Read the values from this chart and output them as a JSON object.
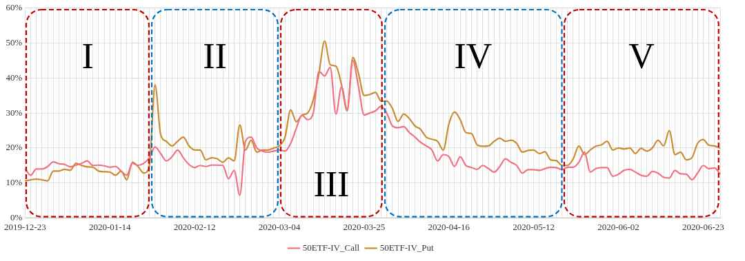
{
  "chart_data": {
    "type": "line",
    "categories": [
      "2019-12-23",
      null,
      null,
      null,
      null,
      null,
      null,
      null,
      null,
      null,
      null,
      null,
      null,
      null,
      null,
      "2020-01-14",
      null,
      null,
      null,
      null,
      null,
      null,
      null,
      null,
      null,
      null,
      null,
      null,
      null,
      null,
      "2020-02-12",
      null,
      null,
      null,
      null,
      null,
      null,
      null,
      null,
      null,
      null,
      null,
      null,
      null,
      null,
      "2020-03-04",
      null,
      null,
      null,
      null,
      null,
      null,
      null,
      null,
      null,
      null,
      null,
      null,
      null,
      null,
      "2020-03-25",
      null,
      null,
      null,
      null,
      null,
      null,
      null,
      null,
      null,
      null,
      null,
      null,
      null,
      null,
      "2020-04-16",
      null,
      null,
      null,
      null,
      null,
      null,
      null,
      null,
      null,
      null,
      null,
      null,
      null,
      null,
      "2020-05-12",
      null,
      null,
      null,
      null,
      null,
      null,
      null,
      null,
      null,
      null,
      null,
      null,
      null,
      null,
      "2020-06-02",
      null,
      null,
      null,
      null,
      null,
      null,
      null,
      null,
      null,
      null,
      null,
      null,
      null,
      null,
      "2020-06-23",
      null,
      null,
      null
    ],
    "series": [
      {
        "name": "50ETF-IV_Call",
        "color": "#f27083",
        "values": [
          14.1,
          12.2,
          14,
          14,
          14.7,
          16,
          15.5,
          15.3,
          14.6,
          15.1,
          15.6,
          16.3,
          15,
          15.1,
          14.9,
          14.5,
          14.7,
          13.4,
          12.2,
          15.6,
          15,
          15.6,
          17.2,
          20.3,
          18.4,
          16.3,
          17.5,
          19.4,
          17.2,
          15.3,
          14.4,
          15,
          14.7,
          15.1,
          15.1,
          15,
          11.2,
          13.6,
          6.5,
          21.9,
          23.1,
          20,
          19.1,
          18.8,
          19.1,
          19.4,
          19.1,
          21.3,
          25.6,
          29.4,
          28.1,
          30,
          41.9,
          40.6,
          43.1,
          29.7,
          37.5,
          30.9,
          45,
          37.5,
          29.4,
          30,
          30.6,
          31.9,
          30,
          26.3,
          25.8,
          26.1,
          24.4,
          23.1,
          21.6,
          20.6,
          19.4,
          16.3,
          18.1,
          17.5,
          14.7,
          17.5,
          15,
          14.4,
          13.9,
          15,
          14.1,
          13.1,
          14.7,
          16.9,
          15.9,
          15,
          12.8,
          13.8,
          13.8,
          13.6,
          14.1,
          14.5,
          14.4,
          13.8,
          14.5,
          14.5,
          15.9,
          18.8,
          13.1,
          14.1,
          14.4,
          14.4,
          11.9,
          12.5,
          13.6,
          13.9,
          13.1,
          12.2,
          11.9,
          13.3,
          12.8,
          11.6,
          11.4,
          13.6,
          12.6,
          12.5,
          10.9,
          12.8,
          15,
          14.1,
          14.3,
          12.5
        ]
      },
      {
        "name": "50ETF-IV_Put",
        "color": "#c98c2e",
        "values": [
          10.6,
          10.9,
          11.1,
          10.9,
          10.6,
          13.4,
          13.4,
          13.9,
          13.6,
          15.6,
          15,
          14.6,
          14.5,
          13.4,
          13.2,
          13.1,
          12.2,
          13.4,
          10.9,
          15.9,
          14.7,
          12.8,
          15,
          38.1,
          23.8,
          21.9,
          20.6,
          21.9,
          23.1,
          20.6,
          19.4,
          19.4,
          16.6,
          17.2,
          16.9,
          15.9,
          17.2,
          16.3,
          26.6,
          19.4,
          22.2,
          18.8,
          19.4,
          19.4,
          20,
          20.6,
          23.1,
          30.9,
          27.5,
          29.4,
          30,
          33.8,
          41.3,
          50.6,
          43.8,
          43.4,
          38.1,
          30.6,
          45.9,
          41.3,
          35,
          35.3,
          35.9,
          33.4,
          33.4,
          31.3,
          27.6,
          29.7,
          28.4,
          26.3,
          25.3,
          23.1,
          22.5,
          21.9,
          19.4,
          26.9,
          30.3,
          28.1,
          24.4,
          24.1,
          20.9,
          20.5,
          20.6,
          21.9,
          22.8,
          21.9,
          22.2,
          21.3,
          18.8,
          19.3,
          19.4,
          18.4,
          18.9,
          16.6,
          16.4,
          15,
          15,
          16.9,
          20.6,
          18.1,
          19.4,
          20.5,
          20.9,
          21.9,
          19.4,
          20,
          19.7,
          20,
          18.4,
          19.9,
          19.1,
          20,
          22.2,
          20.6,
          25,
          18.1,
          18.8,
          16.6,
          17.2,
          21.3,
          22.4,
          20.8,
          20.6,
          19.9
        ]
      }
    ],
    "ylim": [
      0,
      60
    ],
    "yticks": [
      {
        "value": 0,
        "label": "0%"
      },
      {
        "value": 10,
        "label": "10%"
      },
      {
        "value": 20,
        "label": "20%"
      },
      {
        "value": 30,
        "label": "30%"
      },
      {
        "value": 40,
        "label": "40%"
      },
      {
        "value": 50,
        "label": "50%"
      },
      {
        "value": 60,
        "label": "60%"
      }
    ],
    "annotations": [
      "I",
      "II",
      "III",
      "IV",
      "V"
    ],
    "grid": true,
    "legend": "bottom",
    "marker": "none",
    "line_style": "solid"
  }
}
